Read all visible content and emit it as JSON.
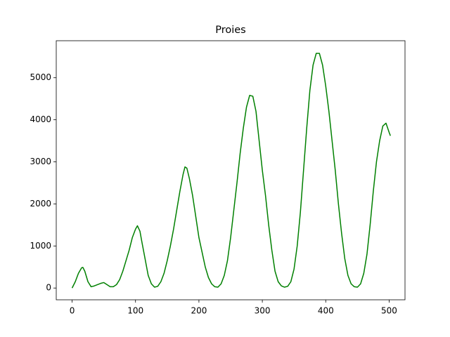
{
  "chart_data": {
    "type": "line",
    "title": "Proies",
    "x": [
      0,
      5,
      10,
      15,
      17,
      20,
      25,
      30,
      35,
      40,
      45,
      50,
      55,
      60,
      65,
      70,
      75,
      80,
      85,
      90,
      95,
      100,
      103,
      107,
      110,
      115,
      120,
      125,
      130,
      135,
      140,
      145,
      150,
      155,
      160,
      165,
      170,
      175,
      178,
      181,
      185,
      190,
      195,
      200,
      205,
      210,
      215,
      220,
      225,
      230,
      235,
      240,
      245,
      250,
      255,
      260,
      265,
      270,
      275,
      280,
      285,
      290,
      295,
      300,
      305,
      310,
      315,
      320,
      325,
      330,
      335,
      340,
      345,
      350,
      355,
      360,
      365,
      370,
      375,
      380,
      385,
      390,
      395,
      400,
      405,
      410,
      415,
      420,
      425,
      430,
      435,
      440,
      445,
      450,
      455,
      460,
      465,
      470,
      475,
      480,
      485,
      490,
      495,
      500,
      502
    ],
    "series": [
      {
        "color": "#008000",
        "values": [
          0,
          150,
          350,
          480,
          490,
          400,
          150,
          30,
          50,
          80,
          110,
          130,
          80,
          30,
          30,
          80,
          200,
          400,
          650,
          900,
          1200,
          1400,
          1480,
          1350,
          1100,
          700,
          300,
          100,
          20,
          40,
          150,
          350,
          650,
          1000,
          1400,
          1850,
          2300,
          2700,
          2880,
          2850,
          2600,
          2200,
          1700,
          1200,
          850,
          500,
          250,
          100,
          30,
          20,
          100,
          300,
          650,
          1200,
          1850,
          2500,
          3200,
          3800,
          4300,
          4580,
          4560,
          4200,
          3500,
          2800,
          2200,
          1500,
          900,
          400,
          150,
          50,
          20,
          40,
          150,
          450,
          1000,
          1800,
          2800,
          3800,
          4700,
          5300,
          5580,
          5580,
          5300,
          4800,
          4200,
          3500,
          2800,
          2000,
          1300,
          700,
          300,
          100,
          30,
          20,
          100,
          350,
          800,
          1500,
          2300,
          3000,
          3500,
          3850,
          3920,
          3700,
          3620
        ]
      }
    ],
    "xlim": [
      -25,
      525
    ],
    "ylim": [
      -280,
      5880
    ],
    "xticks": [
      0,
      100,
      200,
      300,
      400,
      500
    ],
    "yticks": [
      0,
      1000,
      2000,
      3000,
      4000,
      5000
    ]
  }
}
